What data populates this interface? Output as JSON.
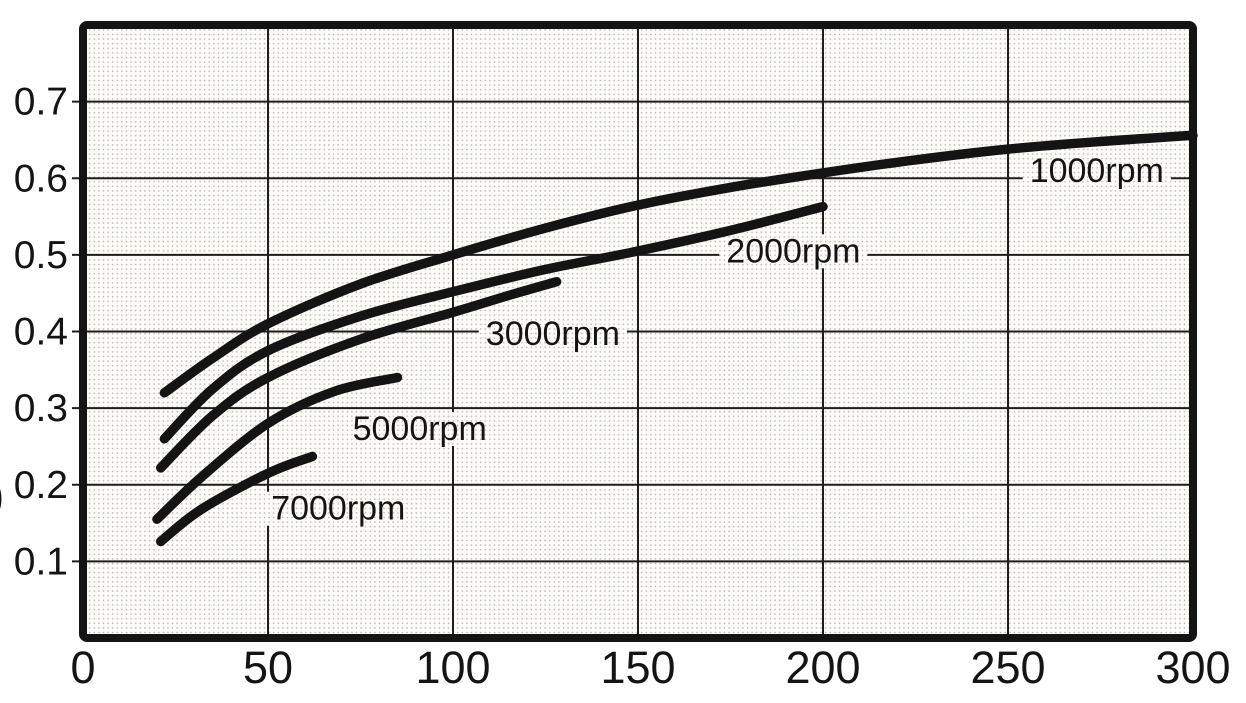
{
  "figure": {
    "background": "#ffffff",
    "ink": "#141414",
    "grid_line": "#1e1e1e",
    "plot_fill": "#fcfbf8",
    "halftone_dot": "#b7b3ab",
    "axis_fragment": ")"
  },
  "chart_data": {
    "type": "line",
    "title": "",
    "xlabel": "",
    "ylabel": "",
    "xlim": [
      0,
      300
    ],
    "ylim": [
      0,
      0.8
    ],
    "grid": true,
    "legend_position": "inline-labels",
    "x_ticks": [
      "0",
      "50",
      "100",
      "150",
      "200",
      "250",
      "300"
    ],
    "y_ticks": [
      "0.1",
      "0.2",
      "0.3",
      "0.4",
      "0.5",
      "0.6",
      "0.7"
    ],
    "series": [
      {
        "name": "1000rpm",
        "label": "1000rpm",
        "label_anchor": [
          274,
          0.611
        ],
        "points": [
          [
            22,
            0.32
          ],
          [
            35,
            0.365
          ],
          [
            50,
            0.41
          ],
          [
            75,
            0.462
          ],
          [
            100,
            0.5
          ],
          [
            125,
            0.535
          ],
          [
            150,
            0.565
          ],
          [
            175,
            0.588
          ],
          [
            200,
            0.607
          ],
          [
            225,
            0.624
          ],
          [
            250,
            0.638
          ],
          [
            275,
            0.648
          ],
          [
            300,
            0.656
          ]
        ]
      },
      {
        "name": "2000rpm",
        "label": "2000rpm",
        "label_anchor": [
          192,
          0.506
        ],
        "points": [
          [
            22,
            0.26
          ],
          [
            35,
            0.325
          ],
          [
            50,
            0.375
          ],
          [
            75,
            0.42
          ],
          [
            100,
            0.452
          ],
          [
            125,
            0.481
          ],
          [
            150,
            0.505
          ],
          [
            175,
            0.532
          ],
          [
            200,
            0.563
          ]
        ]
      },
      {
        "name": "3000rpm",
        "label": "3000rpm",
        "label_anchor": [
          127,
          0.398
        ],
        "points": [
          [
            21,
            0.222
          ],
          [
            35,
            0.29
          ],
          [
            50,
            0.34
          ],
          [
            75,
            0.39
          ],
          [
            100,
            0.425
          ],
          [
            115,
            0.447
          ],
          [
            128,
            0.465
          ]
        ]
      },
      {
        "name": "5000rpm",
        "label": "5000rpm",
        "label_anchor": [
          91,
          0.274
        ],
        "points": [
          [
            20,
            0.155
          ],
          [
            32,
            0.21
          ],
          [
            50,
            0.28
          ],
          [
            68,
            0.322
          ],
          [
            85,
            0.34
          ]
        ]
      },
      {
        "name": "7000rpm",
        "label": "7000rpm",
        "label_anchor": [
          69,
          0.17
        ],
        "points": [
          [
            21,
            0.126
          ],
          [
            32,
            0.168
          ],
          [
            50,
            0.215
          ],
          [
            62,
            0.237
          ]
        ]
      }
    ]
  }
}
